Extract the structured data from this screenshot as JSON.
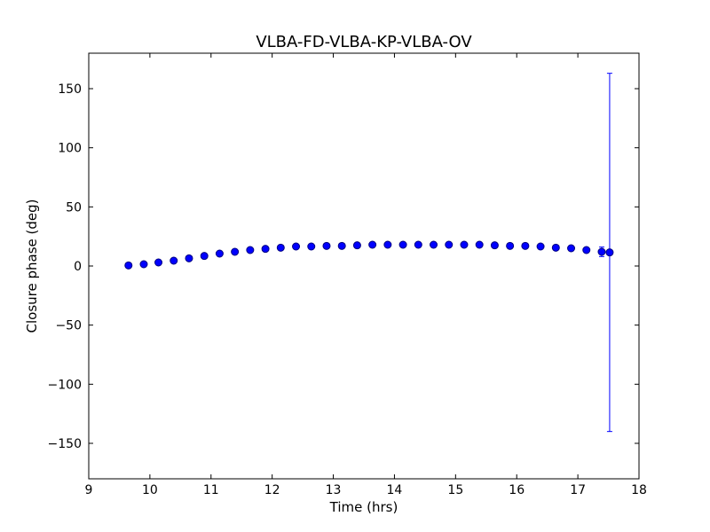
{
  "chart_data": {
    "type": "scatter",
    "title": "VLBA-FD-VLBA-KP-VLBA-OV",
    "xlabel": "Time (hrs)",
    "ylabel": "Closure phase (deg)",
    "xlim": [
      9,
      18
    ],
    "ylim": [
      -180,
      180
    ],
    "xticks": [
      9,
      10,
      11,
      12,
      13,
      14,
      15,
      16,
      17,
      18
    ],
    "yticks": [
      -150,
      -100,
      -50,
      0,
      50,
      100,
      150
    ],
    "ytick_labels": [
      "−150",
      "−100",
      "−50",
      "0",
      "50",
      "100",
      "150"
    ],
    "grid": false,
    "marker_color": "#0000ff",
    "marker_edge_color": "#000080",
    "points": [
      {
        "x": 9.65,
        "y": 0.5,
        "err": 0.6
      },
      {
        "x": 9.9,
        "y": 1.5,
        "err": 0.6
      },
      {
        "x": 10.14,
        "y": 3.0,
        "err": 0.6
      },
      {
        "x": 10.39,
        "y": 4.5,
        "err": 0.6
      },
      {
        "x": 10.64,
        "y": 6.5,
        "err": 0.6
      },
      {
        "x": 10.89,
        "y": 8.5,
        "err": 0.6
      },
      {
        "x": 11.14,
        "y": 10.5,
        "err": 0.6
      },
      {
        "x": 11.39,
        "y": 12.0,
        "err": 0.6
      },
      {
        "x": 11.64,
        "y": 13.5,
        "err": 0.6
      },
      {
        "x": 11.89,
        "y": 14.5,
        "err": 0.6
      },
      {
        "x": 12.14,
        "y": 15.5,
        "err": 0.6
      },
      {
        "x": 12.39,
        "y": 16.5,
        "err": 0.6
      },
      {
        "x": 12.64,
        "y": 16.5,
        "err": 0.6
      },
      {
        "x": 12.89,
        "y": 17.0,
        "err": 0.6
      },
      {
        "x": 13.14,
        "y": 17.0,
        "err": 0.6
      },
      {
        "x": 13.39,
        "y": 17.5,
        "err": 0.6
      },
      {
        "x": 13.64,
        "y": 18.0,
        "err": 0.6
      },
      {
        "x": 13.89,
        "y": 18.0,
        "err": 0.6
      },
      {
        "x": 14.14,
        "y": 18.0,
        "err": 0.6
      },
      {
        "x": 14.39,
        "y": 18.0,
        "err": 0.6
      },
      {
        "x": 14.64,
        "y": 18.0,
        "err": 0.6
      },
      {
        "x": 14.89,
        "y": 18.0,
        "err": 0.6
      },
      {
        "x": 15.14,
        "y": 18.0,
        "err": 0.6
      },
      {
        "x": 15.39,
        "y": 18.0,
        "err": 0.6
      },
      {
        "x": 15.64,
        "y": 17.5,
        "err": 0.6
      },
      {
        "x": 15.89,
        "y": 17.0,
        "err": 0.6
      },
      {
        "x": 16.14,
        "y": 17.0,
        "err": 0.6
      },
      {
        "x": 16.39,
        "y": 16.5,
        "err": 0.6
      },
      {
        "x": 16.64,
        "y": 15.5,
        "err": 0.6
      },
      {
        "x": 16.89,
        "y": 15.0,
        "err": 0.6
      },
      {
        "x": 17.14,
        "y": 13.5,
        "err": 0.6
      },
      {
        "x": 17.39,
        "y": 12.0,
        "err": 4.0
      },
      {
        "x": 17.52,
        "y": 11.5,
        "err": 151.5
      }
    ]
  }
}
